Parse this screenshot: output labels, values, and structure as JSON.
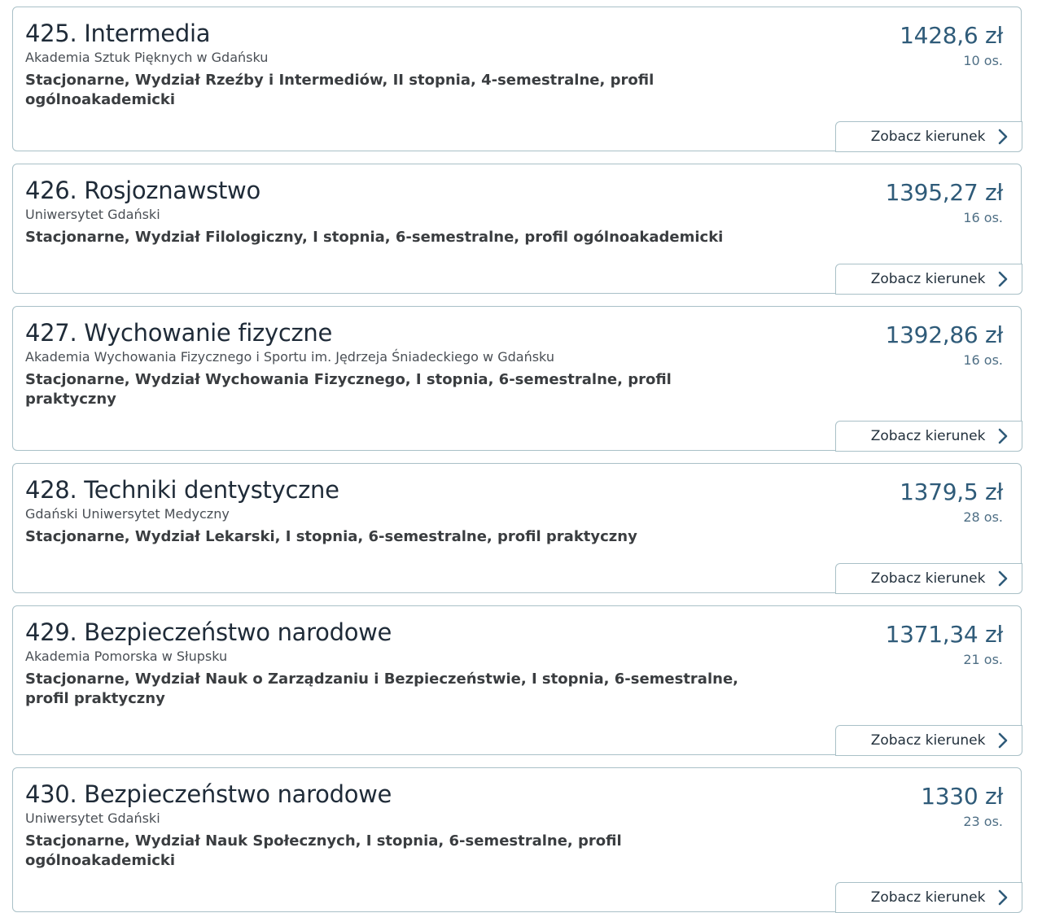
{
  "button_label": "Zobacz kierunek",
  "colors": {
    "price": "#2f5b79",
    "border": "#a9c0c7",
    "title": "#1f2b38"
  },
  "items": [
    {
      "title": "425. Intermedia",
      "university": "Akademia Sztuk Pięknych w Gdańsku",
      "details": "Stacjonarne, Wydział Rzeźby i Intermediów, II stopnia, 4-semestralne, profil ogólnoakademicki",
      "price": "1428,6 zł",
      "count": "10 os."
    },
    {
      "title": "426. Rosjoznawstwo",
      "university": "Uniwersytet Gdański",
      "details": "Stacjonarne, Wydział Filologiczny, I stopnia, 6-semestralne, profil ogólnoakademicki",
      "price": "1395,27 zł",
      "count": "16 os."
    },
    {
      "title": "427. Wychowanie fizyczne",
      "university": "Akademia Wychowania Fizycznego i Sportu im. Jędrzeja Śniadeckiego w Gdańsku",
      "details": "Stacjonarne, Wydział Wychowania Fizycznego, I stopnia, 6-semestralne, profil praktyczny",
      "price": "1392,86 zł",
      "count": "16 os."
    },
    {
      "title": "428. Techniki dentystyczne",
      "university": "Gdański Uniwersytet Medyczny",
      "details": "Stacjonarne, Wydział Lekarski, I stopnia, 6-semestralne, profil praktyczny",
      "price": "1379,5 zł",
      "count": "28 os."
    },
    {
      "title": "429. Bezpieczeństwo narodowe",
      "university": "Akademia Pomorska w Słupsku",
      "details": "Stacjonarne, Wydział Nauk o Zarządzaniu i Bezpieczeństwie, I stopnia, 6-semestralne, profil praktyczny",
      "price": "1371,34 zł",
      "count": "21 os."
    },
    {
      "title": "430. Bezpieczeństwo narodowe",
      "university": "Uniwersytet Gdański",
      "details": "Stacjonarne, Wydział Nauk Społecznych, I stopnia, 6-semestralne, profil ogólnoakademicki",
      "price": "1330 zł",
      "count": "23 os."
    }
  ]
}
